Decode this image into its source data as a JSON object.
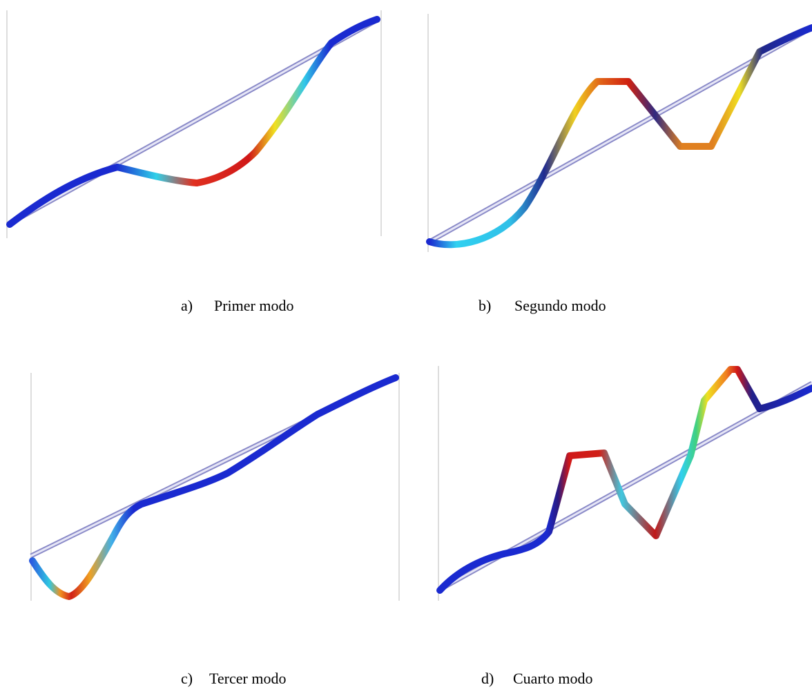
{
  "figures": [
    {
      "label": "a)",
      "caption": "Primer modo"
    },
    {
      "label": "b)",
      "caption": "Segundo modo"
    },
    {
      "label": "c)",
      "caption": "Tercer modo"
    },
    {
      "label": "d)",
      "caption": "Cuarto modo"
    }
  ]
}
